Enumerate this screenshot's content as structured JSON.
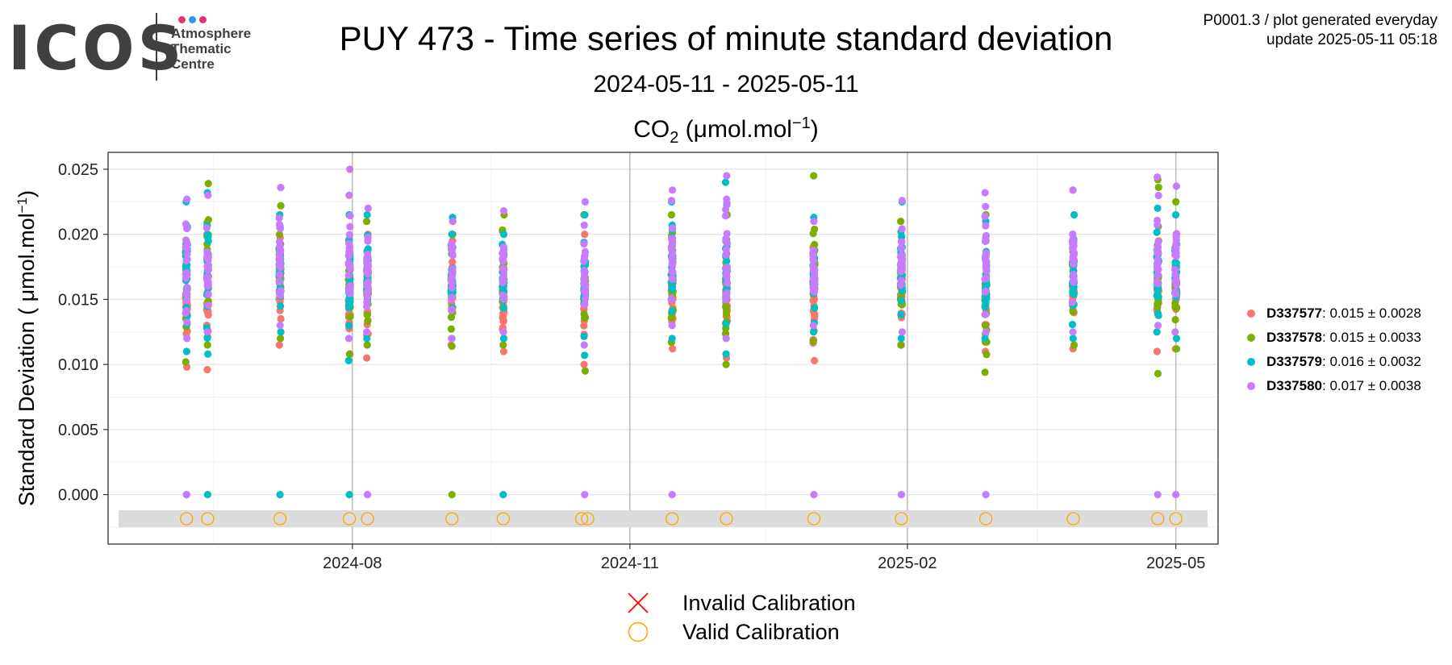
{
  "logo": {
    "word": "ICOS",
    "lines": [
      "Atmosphere",
      "Thematic",
      "Centre"
    ],
    "dot_colors": [
      "#e8326f",
      "#2f96e0",
      "#e8326f"
    ]
  },
  "header": {
    "title": "PUY 473 - Time series of minute standard deviation",
    "date_range": "2024-05-11 - 2025-05-11",
    "plot_title_base": "CO",
    "plot_title_sub": "2",
    "plot_title_rest": " (μmol.mol",
    "plot_title_sup": "−1",
    "plot_title_end": ")"
  },
  "meta": {
    "line1": "P0001.3 / plot generated everyday",
    "line2": "update  2025-05-11 05:18"
  },
  "chart_data": {
    "type": "scatter",
    "ylabel": "Standard Deviation ( μmol.mol⁻¹)",
    "ylim": [
      -0.0038,
      0.0263
    ],
    "xlim": [
      "2024-05-12",
      "2025-05-15"
    ],
    "x_ticks": [
      "2024-08",
      "2024-11",
      "2025-02",
      "2025-05"
    ],
    "x_tick_dates": [
      "2024-08-01",
      "2024-11-01",
      "2025-02-01",
      "2025-05-01"
    ],
    "y_ticks": [
      "0.025",
      "0.020",
      "0.015",
      "0.010",
      "0.005",
      "0.000"
    ],
    "y_tick_values": [
      0.025,
      0.02,
      0.015,
      0.01,
      0.005,
      0.0
    ],
    "grid": true,
    "series": [
      {
        "name": "D337577",
        "color": "#F8766D",
        "mean": "0.015",
        "sd": "0.0028"
      },
      {
        "name": "D337578",
        "color": "#7CAE00",
        "mean": "0.015",
        "sd": "0.0033"
      },
      {
        "name": "D337579",
        "color": "#00BFC4",
        "mean": "0.016",
        "sd": "0.0032"
      },
      {
        "name": "D337580",
        "color": "#C77CFF",
        "mean": "0.017",
        "sd": "0.0038"
      }
    ],
    "sessions": [
      {
        "date": "2024-06-07",
        "ranges": [
          [
            0.0098,
            0.0195
          ],
          [
            0.0102,
            0.0205
          ],
          [
            0.011,
            0.0225
          ],
          [
            0.012,
            0.0227
          ]
        ],
        "zeros": [
          2,
          3
        ]
      },
      {
        "date": "2024-06-14",
        "ranges": [
          [
            0.0096,
            0.02
          ],
          [
            0.0115,
            0.0239
          ],
          [
            0.0108,
            0.0232
          ],
          [
            0.0125,
            0.023
          ]
        ],
        "zeros": [
          2
        ]
      },
      {
        "date": "2024-07-08",
        "ranges": [
          [
            0.0115,
            0.0205
          ],
          [
            0.012,
            0.0222
          ],
          [
            0.0125,
            0.0215
          ],
          [
            0.013,
            0.0236
          ]
        ],
        "zeros": [
          2
        ]
      },
      {
        "date": "2024-07-31",
        "ranges": [
          [
            0.0108,
            0.0195
          ],
          [
            0.0108,
            0.0215
          ],
          [
            0.0103,
            0.0215
          ],
          [
            0.012,
            0.025
          ]
        ],
        "zeros": [
          2
        ]
      },
      {
        "date": "2024-08-06",
        "ranges": [
          [
            0.0105,
            0.02
          ],
          [
            0.0115,
            0.021
          ],
          [
            0.012,
            0.0215
          ],
          [
            0.0125,
            0.022
          ]
        ],
        "zeros": [
          3
        ]
      },
      {
        "date": "2024-09-03",
        "ranges": [
          [
            0.0115,
            0.0195
          ],
          [
            0.0114,
            0.02
          ],
          [
            0.012,
            0.0213
          ],
          [
            0.012,
            0.021
          ]
        ],
        "zeros": [
          1
        ]
      },
      {
        "date": "2024-09-20",
        "ranges": [
          [
            0.011,
            0.0175
          ],
          [
            0.0115,
            0.0215
          ],
          [
            0.012,
            0.02
          ],
          [
            0.0125,
            0.0218
          ]
        ],
        "zeros": [
          2
        ]
      },
      {
        "date": "2024-10-17",
        "ranges": [
          [
            0.01,
            0.02
          ],
          [
            0.0095,
            0.0215
          ],
          [
            0.0107,
            0.0215
          ],
          [
            0.0115,
            0.0225
          ]
        ],
        "zeros": [
          3
        ]
      },
      {
        "date": "2024-11-15",
        "ranges": [
          [
            0.0112,
            0.019
          ],
          [
            0.0117,
            0.0215
          ],
          [
            0.012,
            0.0225
          ],
          [
            0.013,
            0.0234
          ]
        ],
        "zeros": [
          3
        ]
      },
      {
        "date": "2024-12-03",
        "ranges": [
          [
            0.0105,
            0.0195
          ],
          [
            0.01,
            0.0215
          ],
          [
            0.0108,
            0.024
          ],
          [
            0.012,
            0.0245
          ]
        ],
        "zeros": []
      },
      {
        "date": "2025-01-01",
        "ranges": [
          [
            0.0103,
            0.019
          ],
          [
            0.0118,
            0.0245
          ],
          [
            0.0125,
            0.0213
          ],
          [
            0.013,
            0.021
          ]
        ],
        "zeros": [
          3
        ]
      },
      {
        "date": "2025-01-30",
        "ranges": [
          [
            0.0115,
            0.0195
          ],
          [
            0.0115,
            0.021
          ],
          [
            0.012,
            0.0225
          ],
          [
            0.0125,
            0.0226
          ]
        ],
        "zeros": [
          3
        ]
      },
      {
        "date": "2025-02-27",
        "ranges": [
          [
            0.011,
            0.0195
          ],
          [
            0.0094,
            0.0215
          ],
          [
            0.012,
            0.021
          ],
          [
            0.0125,
            0.0232
          ]
        ],
        "zeros": [
          3
        ]
      },
      {
        "date": "2025-03-28",
        "ranges": [
          [
            0.0112,
            0.0195
          ],
          [
            0.0115,
            0.0234
          ],
          [
            0.012,
            0.0215
          ],
          [
            0.0125,
            0.0234
          ]
        ],
        "zeros": []
      },
      {
        "date": "2025-04-25",
        "ranges": [
          [
            0.011,
            0.0195
          ],
          [
            0.0093,
            0.0242
          ],
          [
            0.0125,
            0.022
          ],
          [
            0.013,
            0.0244
          ]
        ],
        "zeros": [
          3
        ]
      },
      {
        "date": "2025-05-01",
        "ranges": [
          [
            0.0112,
            0.02
          ],
          [
            0.0112,
            0.0225
          ],
          [
            0.012,
            0.0215
          ],
          [
            0.0125,
            0.0237
          ]
        ],
        "zeros": [
          3
        ]
      }
    ],
    "valid_calibration_dates": [
      "2024-06-07",
      "2024-06-14",
      "2024-07-08",
      "2024-07-31",
      "2024-08-06",
      "2024-09-03",
      "2024-09-20",
      "2024-10-16",
      "2024-10-18",
      "2024-11-15",
      "2024-12-03",
      "2025-01-01",
      "2025-01-30",
      "2025-02-27",
      "2025-03-28",
      "2025-04-25",
      "2025-05-01"
    ],
    "invalid_calibration_dates": []
  },
  "calibration_legend": {
    "invalid_label": "Invalid Calibration",
    "valid_label": "Valid Calibration",
    "invalid_color": "#FF0000",
    "valid_color": "#FFA500"
  }
}
